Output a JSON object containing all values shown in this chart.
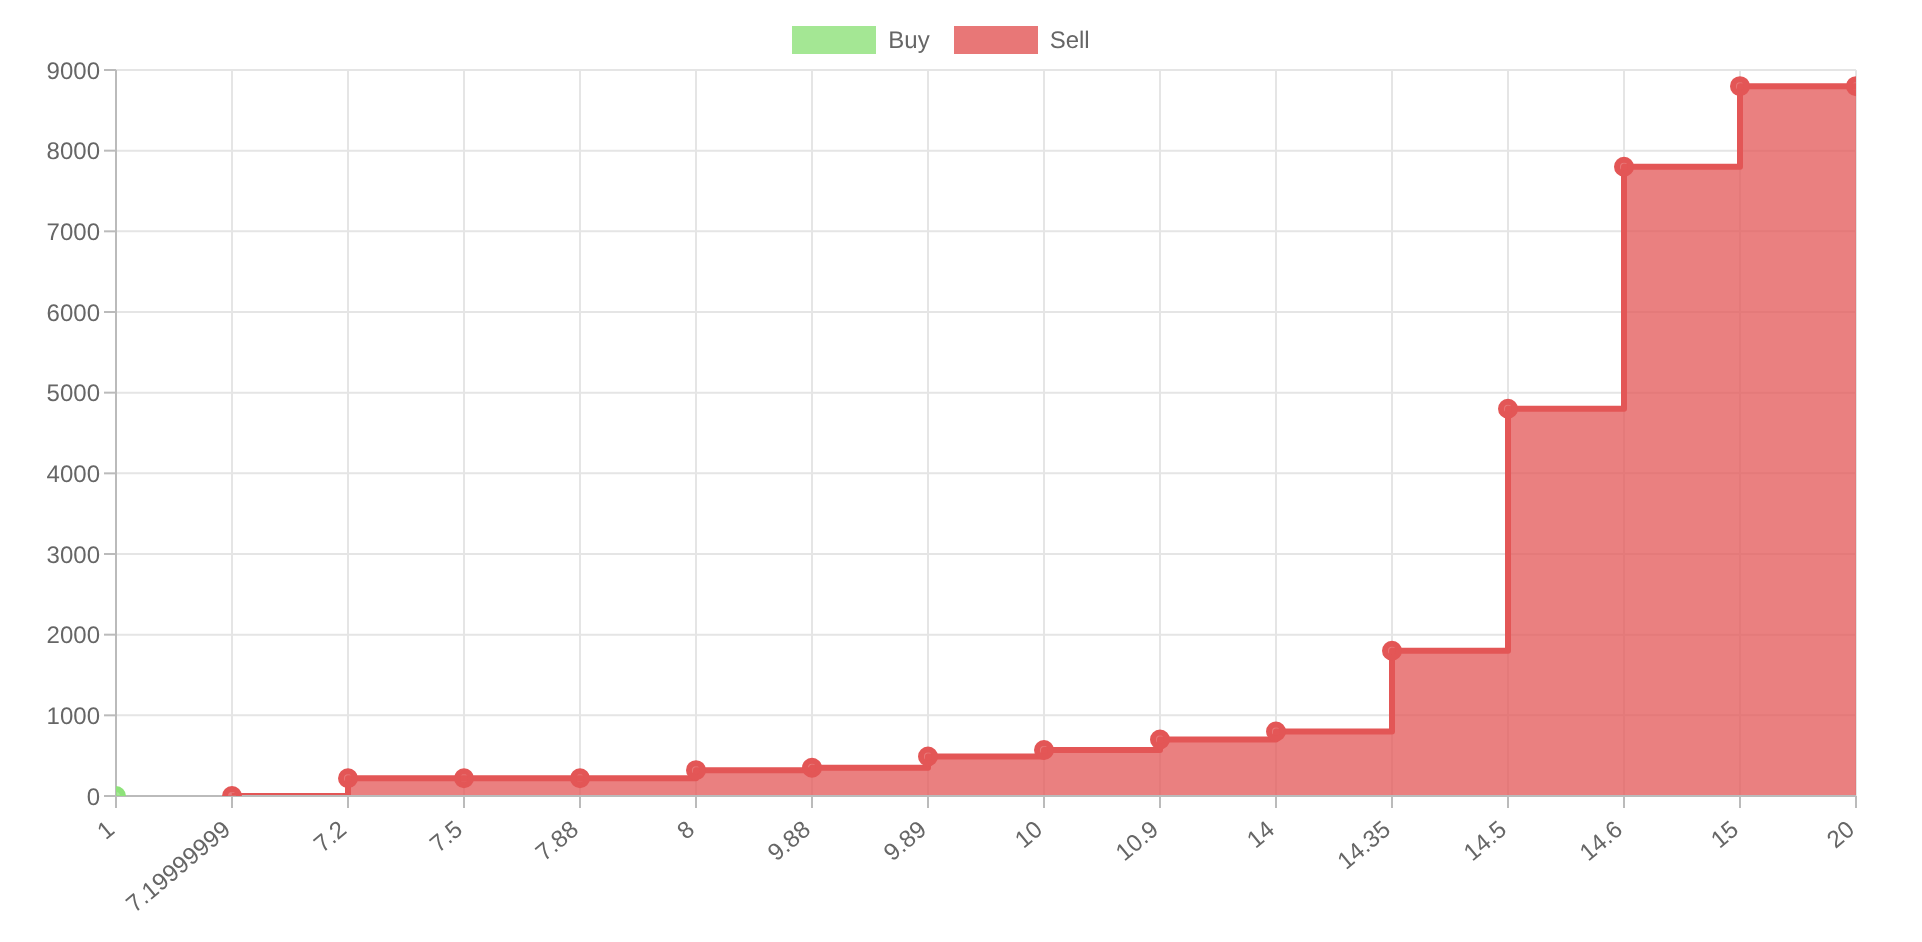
{
  "chart_data": {
    "type": "step",
    "categories": [
      "1",
      "7.19999999",
      "7.2",
      "7.5",
      "7.88",
      "8",
      "9.88",
      "9.89",
      "10",
      "10.9",
      "14",
      "14.35",
      "14.5",
      "14.6",
      "15",
      "20"
    ],
    "series": [
      {
        "name": "Buy",
        "color": "#8ee27a",
        "values": [
          0,
          null,
          null,
          null,
          null,
          null,
          null,
          null,
          null,
          null,
          null,
          null,
          null,
          null,
          null,
          null
        ]
      },
      {
        "name": "Sell",
        "color": "#e35656",
        "values": [
          null,
          0,
          220,
          220,
          220,
          320,
          350,
          490,
          570,
          700,
          800,
          1800,
          4800,
          7800,
          8800,
          8800
        ]
      }
    ],
    "ylim": [
      0,
      9000
    ],
    "yticks": [
      0,
      1000,
      2000,
      3000,
      4000,
      5000,
      6000,
      7000,
      8000,
      9000
    ],
    "grid": true,
    "legend": "top",
    "marker": "circle",
    "line_style": "solid"
  }
}
